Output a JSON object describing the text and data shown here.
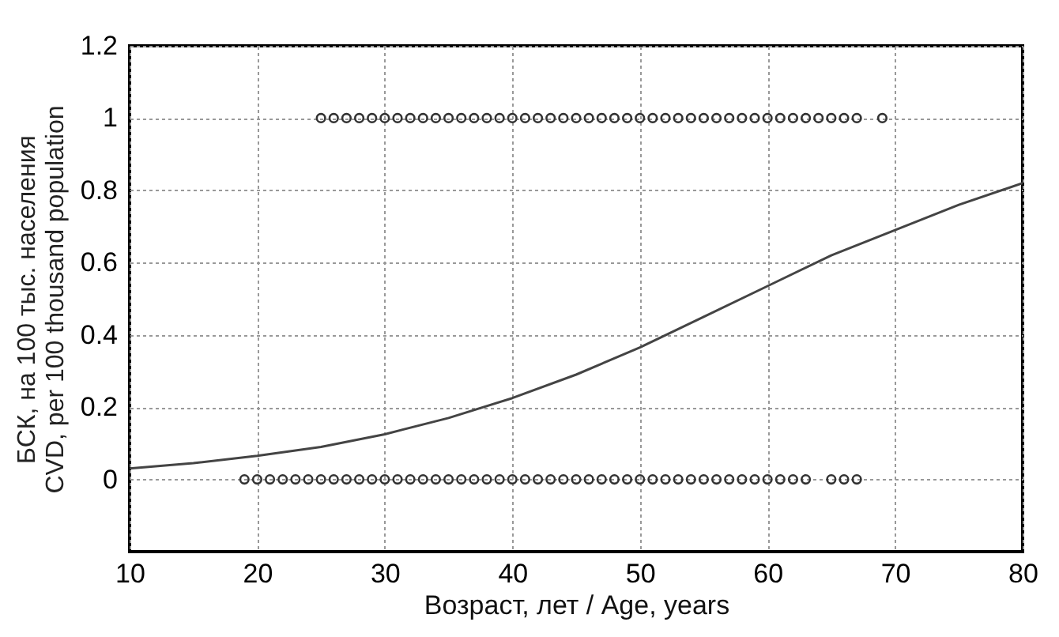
{
  "chart_data": {
    "type": "scatter",
    "xlabel": "Возраст, лет / Age, years",
    "ylabel": "БСК, на 100 тыс. населения\nCVD, per 100 thousand population",
    "xlim": [
      10,
      80
    ],
    "xticks": [
      10,
      20,
      30,
      40,
      50,
      60,
      70,
      80
    ],
    "ylim": [
      -0.2,
      1.2
    ],
    "yticks": [
      0,
      0.2,
      0.4,
      0.6,
      0.8,
      1,
      1.2
    ],
    "grid": true,
    "line_style": "solid",
    "series": [
      {
        "marker": "circle",
        "color": "#333333",
        "x": [
          25,
          26,
          27,
          28,
          29,
          30,
          31,
          32,
          33,
          34,
          35,
          36,
          37,
          38,
          39,
          40,
          41,
          42,
          43,
          44,
          45,
          46,
          47,
          48,
          49,
          50,
          51,
          52,
          53,
          54,
          55,
          56,
          57,
          58,
          59,
          60,
          61,
          62,
          63,
          64,
          65,
          66,
          67,
          69
        ],
        "values": [
          1,
          1,
          1,
          1,
          1,
          1,
          1,
          1,
          1,
          1,
          1,
          1,
          1,
          1,
          1,
          1,
          1,
          1,
          1,
          1,
          1,
          1,
          1,
          1,
          1,
          1,
          1,
          1,
          1,
          1,
          1,
          1,
          1,
          1,
          1,
          1,
          1,
          1,
          1,
          1,
          1,
          1,
          1,
          1
        ]
      },
      {
        "marker": "circle",
        "color": "#333333",
        "x": [
          19,
          20,
          21,
          22,
          23,
          24,
          25,
          26,
          27,
          28,
          29,
          30,
          31,
          32,
          33,
          34,
          35,
          36,
          37,
          38,
          39,
          40,
          41,
          42,
          43,
          44,
          45,
          46,
          47,
          48,
          49,
          50,
          51,
          52,
          53,
          54,
          55,
          56,
          57,
          58,
          59,
          60,
          61,
          62,
          63,
          65,
          66,
          67
        ],
        "values": [
          0,
          0,
          0,
          0,
          0,
          0,
          0,
          0,
          0,
          0,
          0,
          0,
          0,
          0,
          0,
          0,
          0,
          0,
          0,
          0,
          0,
          0,
          0,
          0,
          0,
          0,
          0,
          0,
          0,
          0,
          0,
          0,
          0,
          0,
          0,
          0,
          0,
          0,
          0,
          0,
          0,
          0,
          0,
          0,
          0,
          0,
          0,
          0
        ]
      },
      {
        "type": "line",
        "marker": "none",
        "color": "#444444",
        "x": [
          10,
          15,
          20,
          25,
          30,
          35,
          40,
          45,
          50,
          55,
          60,
          65,
          70,
          75,
          80
        ],
        "values": [
          0.03,
          0.045,
          0.065,
          0.09,
          0.125,
          0.17,
          0.225,
          0.29,
          0.365,
          0.45,
          0.535,
          0.62,
          0.69,
          0.76,
          0.82
        ]
      }
    ]
  }
}
